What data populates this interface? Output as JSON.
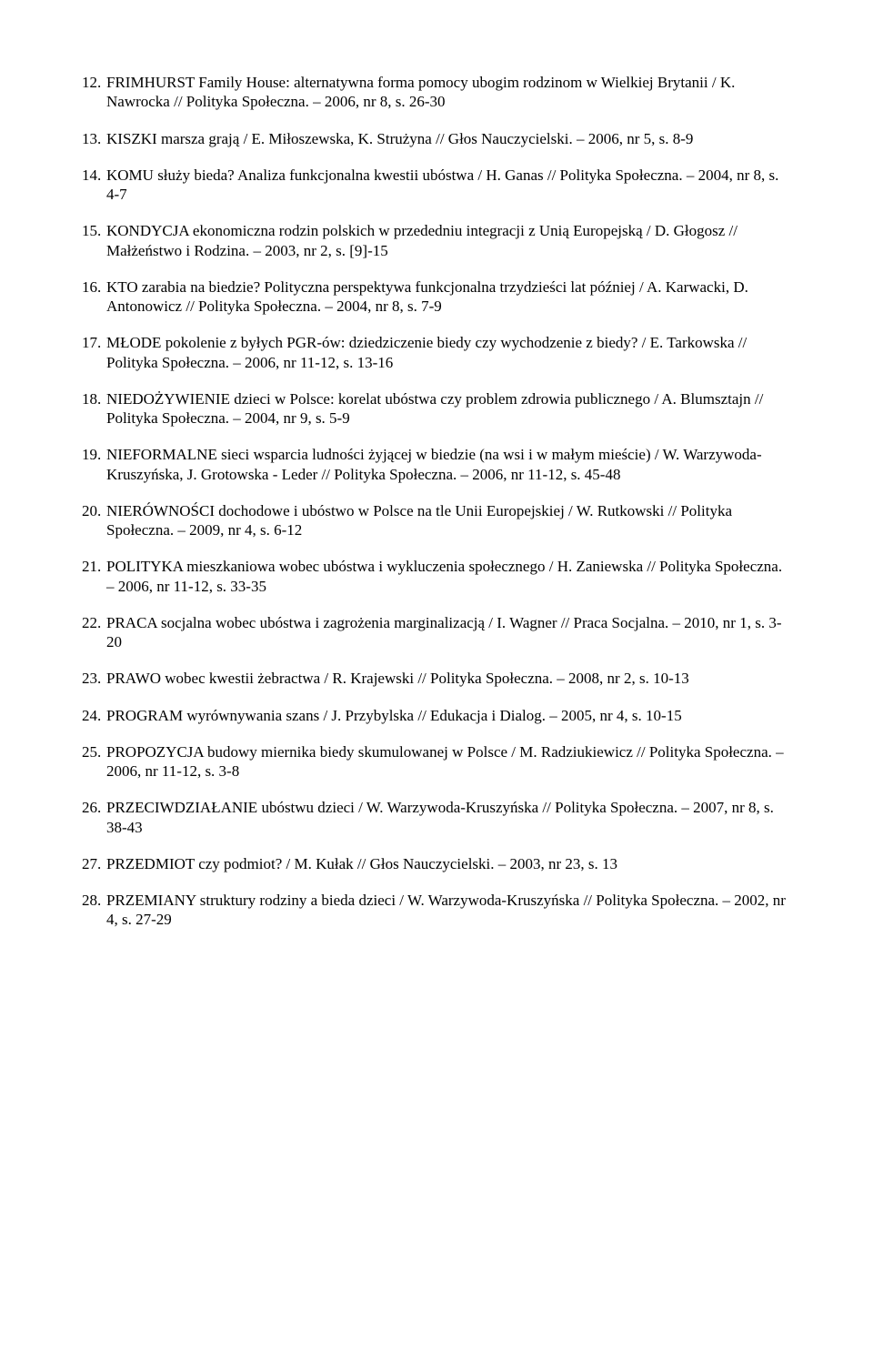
{
  "entries": [
    {
      "n": "12.",
      "t": "FRIMHURST Family House: alternatywna forma pomocy ubogim rodzinom w Wielkiej Brytanii / K. Nawrocka // Polityka Społeczna. – 2006, nr 8, s. 26-30"
    },
    {
      "n": "13.",
      "t": "KISZKI marsza grają / E. Miłoszewska, K. Strużyna // Głos Nauczycielski. – 2006, nr 5, s. 8-9"
    },
    {
      "n": "14.",
      "t": "KOMU służy bieda? Analiza funkcjonalna kwestii ubóstwa / H. Ganas // Polityka Społeczna. – 2004, nr 8, s. 4-7"
    },
    {
      "n": "15.",
      "t": "KONDYCJA ekonomiczna rodzin polskich w przededniu integracji z Unią Europejską / D. Głogosz // Małżeństwo i Rodzina. – 2003, nr 2, s. [9]-15"
    },
    {
      "n": "16.",
      "t": "KTO zarabia na biedzie? Polityczna perspektywa funkcjonalna trzydzieści lat później / A. Karwacki, D. Antonowicz // Polityka Społeczna. – 2004, nr 8, s. 7-9"
    },
    {
      "n": "17.",
      "t": "MŁODE pokolenie z byłych PGR-ów: dziedziczenie biedy czy wychodzenie z biedy? / E. Tarkowska // Polityka Społeczna. – 2006, nr 11-12, s. 13-16"
    },
    {
      "n": "18.",
      "t": "NIEDOŻYWIENIE dzieci w Polsce: korelat ubóstwa czy problem zdrowia publicznego / A. Blumsztajn // Polityka Społeczna. – 2004, nr 9, s. 5-9"
    },
    {
      "n": "19.",
      "t": "NIEFORMALNE sieci wsparcia ludności żyjącej w biedzie (na wsi i w małym mieście) / W. Warzywoda-Kruszyńska, J. Grotowska - Leder // Polityka Społeczna. – 2006, nr 11-12, s. 45-48"
    },
    {
      "n": "20.",
      "t": "NIERÓWNOŚCI dochodowe i ubóstwo w Polsce na tle Unii Europejskiej / W. Rutkowski // Polityka Społeczna. – 2009, nr 4, s. 6-12"
    },
    {
      "n": "21.",
      "t": "POLITYKA mieszkaniowa wobec ubóstwa i wykluczenia społecznego / H. Zaniewska // Polityka Społeczna. – 2006, nr 11-12, s. 33-35"
    },
    {
      "n": "22.",
      "t": "PRACA socjalna wobec ubóstwa i zagrożenia marginalizacją / I. Wagner // Praca Socjalna. – 2010, nr 1, s. 3-20"
    },
    {
      "n": "23.",
      "t": "PRAWO wobec kwestii żebractwa / R. Krajewski // Polityka Społeczna. – 2008, nr 2, s. 10-13"
    },
    {
      "n": "24.",
      "t": "PROGRAM wyrównywania szans / J. Przybylska // Edukacja i Dialog. – 2005, nr 4, s. 10-15"
    },
    {
      "n": "25.",
      "t": "PROPOZYCJA budowy miernika biedy skumulowanej w Polsce / M. Radziukiewicz // Polityka Społeczna. – 2006, nr 11-12, s. 3-8"
    },
    {
      "n": "26.",
      "t": "PRZECIWDZIAŁANIE ubóstwu dzieci / W. Warzywoda-Kruszyńska // Polityka Społeczna. – 2007, nr 8, s. 38-43"
    },
    {
      "n": "27.",
      "t": "PRZEDMIOT czy podmiot? / M. Kułak // Głos Nauczycielski. – 2003, nr 23, s. 13"
    },
    {
      "n": "28.",
      "t": "PRZEMIANY struktury rodziny a bieda dzieci / W. Warzywoda-Kruszyńska // Polityka Społeczna. – 2002, nr 4, s. 27-29"
    }
  ]
}
